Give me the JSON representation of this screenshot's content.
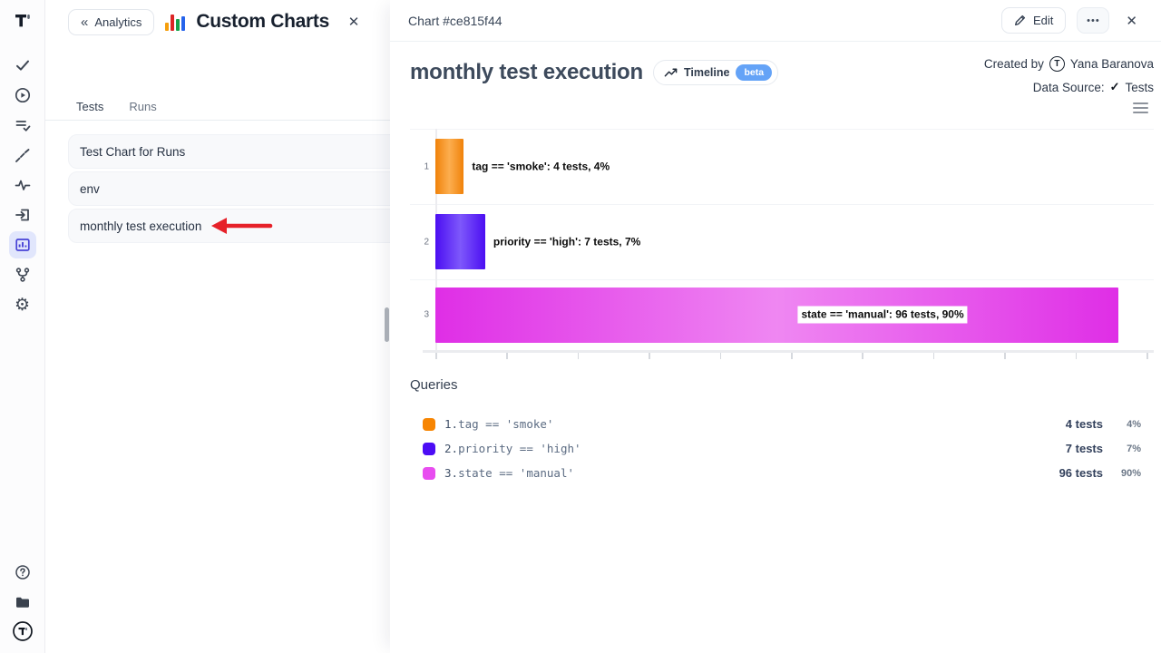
{
  "colors": {
    "accent_active_icon": "#4843d6",
    "accent_active_bg": "#e1e6fc",
    "beta_badge": "#64a3f7",
    "annotation_arrow_red": "#e62129",
    "query_swatches": [
      "#f78502",
      "#4c0df5",
      "#e84df0"
    ]
  },
  "sidebar": {
    "logo_text": "T",
    "icons": [
      "tests-check-icon",
      "runs-play-icon",
      "test-plans-icon",
      "milestones-icon",
      "pulse-icon",
      "import-icon",
      "analytics-icon",
      "branches-icon",
      "settings-icon"
    ],
    "active_icon": "analytics-icon",
    "settings_glyph": "⚙",
    "footer_icons": [
      "help-icon",
      "projects-icon",
      "profile-icon"
    ],
    "profile_text": "T"
  },
  "list_panel": {
    "back_icon": "«",
    "back_label": "Analytics",
    "title": "Custom Charts",
    "close_icon": "✕",
    "tabs": [
      {
        "label": "Tests",
        "active": true
      },
      {
        "label": "Runs",
        "active": false
      }
    ],
    "items": [
      {
        "label": "Test Chart for Runs",
        "annotated": false
      },
      {
        "label": "env",
        "annotated": false
      },
      {
        "label": "monthly test execution",
        "annotated": true
      }
    ]
  },
  "detail_panel": {
    "header_title": "Chart #ce815f44",
    "edit_button": "Edit",
    "more_icon": "•••",
    "close_icon": "✕",
    "chart_title": "monthly test execution",
    "timeline_button": {
      "label": "Timeline",
      "badge": "beta"
    },
    "created_by": {
      "label": "Created by",
      "avatar_text": "T",
      "name": "Yana Baranova"
    },
    "data_source": {
      "label": "Data Source:",
      "check_icon": "✓",
      "value": "Tests"
    },
    "queries": {
      "title": "Queries",
      "rows": [
        {
          "index": "1.",
          "query": "tag == 'smoke'",
          "color": "#f78502",
          "tests": "4 tests",
          "percent": "4%"
        },
        {
          "index": "2.",
          "query": "priority == 'high'",
          "color": "#4c0df5",
          "tests": "7 tests",
          "percent": "7%"
        },
        {
          "index": "3.",
          "query": "state == 'manual'",
          "color": "#e84df0",
          "tests": "96 tests",
          "percent": "90%"
        }
      ]
    }
  },
  "chart_data": {
    "type": "bar",
    "orientation": "horizontal",
    "title": "monthly test execution",
    "categories": [
      "1",
      "2",
      "3"
    ],
    "values": [
      4,
      7,
      96
    ],
    "value_unit": "tests",
    "percents": [
      4,
      7,
      90
    ],
    "bar_labels": [
      "tag == 'smoke': 4 tests, 4%",
      "priority == 'high': 7 tests, 7%",
      "state == 'manual': 96 tests, 90%"
    ],
    "bar_colors": [
      {
        "edge": "#f0820a",
        "mid": "#fcae4f"
      },
      {
        "edge": "#4b0ef2",
        "mid": "#7e58fb"
      },
      {
        "edge": "#df2ee6",
        "mid": "#ef87f2"
      }
    ],
    "label_inside": [
      false,
      false,
      true
    ],
    "xlim": [
      0,
      101
    ],
    "tick_step": 10,
    "grid": "horizontal band separators, ticks unlabeled",
    "legend_position": "below-as-queries-list"
  }
}
